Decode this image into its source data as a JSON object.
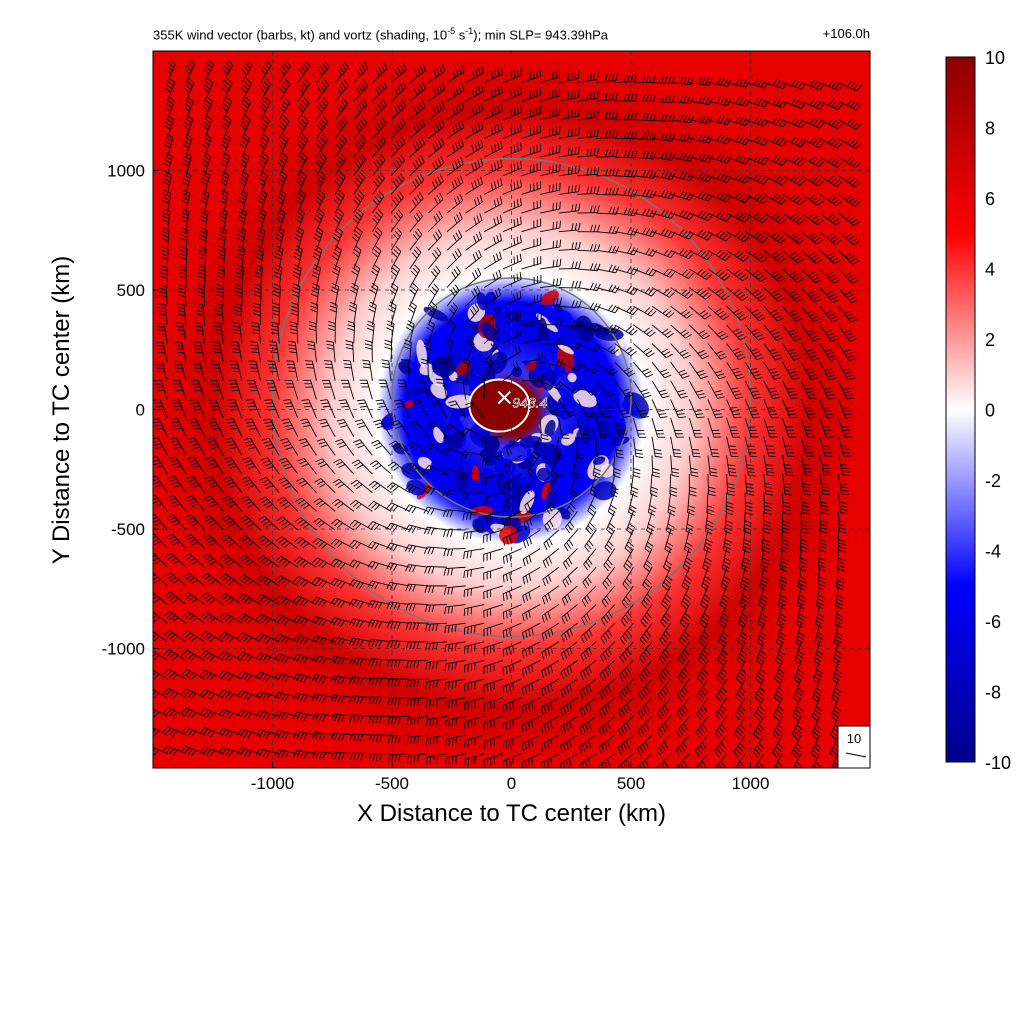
{
  "chart_data": {
    "type": "heatmap",
    "title_parts": [
      "355K wind vector (barbs, kt) and vortz (shading, 10",
      "-5",
      " s",
      "-1",
      "); min SLP= 943.39hPa"
    ],
    "time_label": "+106.0h",
    "xlabel": "X Distance to TC center (km)",
    "ylabel": "Y Distance to TC center (km)",
    "xlim": [
      -1500,
      1500
    ],
    "ylim": [
      -1500,
      1500
    ],
    "xticks": [
      -1000,
      -500,
      0,
      500,
      1000
    ],
    "yticks": [
      -1000,
      -500,
      0,
      500,
      1000
    ],
    "xtick_labels": [
      "-1000",
      "-500",
      "0",
      "500",
      "1000"
    ],
    "ytick_labels": [
      "-1000",
      "-500",
      "0",
      "500",
      "1000"
    ],
    "grid": true,
    "colorbar": {
      "min": -10,
      "max": 10,
      "ticks": [
        10,
        8,
        6,
        4,
        2,
        0,
        -2,
        -4,
        -6,
        -8,
        -10
      ],
      "tick_labels": [
        "10",
        "8",
        "6",
        "4",
        "2",
        "0",
        "-2",
        "-4",
        "-6",
        "-8",
        "-10"
      ],
      "colors": [
        "#00008b",
        "#0000ff",
        "#ffffff",
        "#ff0000",
        "#8b0000"
      ]
    },
    "circles_km": [
      500,
      1000
    ],
    "center_marker": {
      "x": -30,
      "y": 50,
      "label": "943.4"
    },
    "barb_reference": "10",
    "vorticity_field": [
      {
        "r": 0,
        "value": 10
      },
      {
        "r": 100,
        "value": 10
      },
      {
        "r": 160,
        "value": -4
      },
      {
        "r": 300,
        "value": -6
      },
      {
        "r": 450,
        "value": -5
      },
      {
        "r": 560,
        "value": 0
      },
      {
        "r": 750,
        "value": 1
      },
      {
        "r": 1000,
        "value": 4
      },
      {
        "r": 1250,
        "value": 7
      },
      {
        "r": 1500,
        "value": 6
      }
    ]
  },
  "colors": {
    "grid": "#333333",
    "circle": "#777777",
    "barb": "#000000"
  }
}
